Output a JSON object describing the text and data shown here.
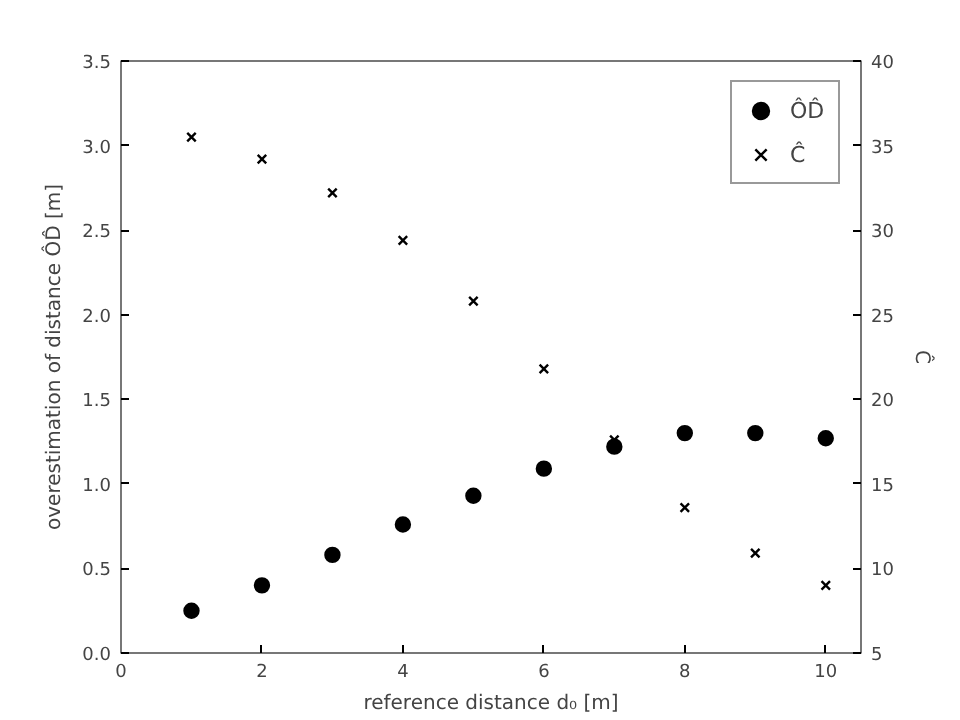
{
  "chart_data": {
    "type": "scatter",
    "xlabel": "reference distance d₀ [m]",
    "ylabel": "overestimation of distance ÔD̂ [m]",
    "y2label": "Ĉ",
    "x": [
      1,
      2,
      3,
      4,
      5,
      6,
      7,
      8,
      9,
      10
    ],
    "series": [
      {
        "name": "ÔD̂",
        "color": "#000000",
        "marker": "circle",
        "values": [
          0.25,
          0.4,
          0.58,
          0.76,
          0.93,
          1.09,
          1.22,
          1.3,
          1.3,
          1.27
        ]
      },
      {
        "name": "Ĉ",
        "color": "#000000",
        "marker": "cross",
        "axis": "y2",
        "values": [
          35.5,
          34.2,
          32.2,
          29.4,
          25.8,
          21.8,
          17.6,
          13.6,
          10.9,
          9.0
        ]
      }
    ],
    "xlim": [
      0,
      10.5
    ],
    "xticks": [
      0,
      2,
      4,
      6,
      8,
      10
    ],
    "ylim": [
      0,
      3.5
    ],
    "yticks": [
      {
        "value": 0,
        "label": "0.0"
      },
      {
        "value": 0.5,
        "label": "0.5"
      },
      {
        "value": 1,
        "label": "1.0"
      },
      {
        "value": 1.5,
        "label": "1.5"
      },
      {
        "value": 2,
        "label": "2.0"
      },
      {
        "value": 2.5,
        "label": "2.5"
      },
      {
        "value": 3,
        "label": "3.0"
      },
      {
        "value": 3.5,
        "label": "3.5"
      }
    ],
    "y2lim": [
      5,
      40
    ],
    "y2ticks": [
      5,
      10,
      15,
      20,
      25,
      30,
      35,
      40
    ],
    "grid": false,
    "legend": "top right"
  }
}
